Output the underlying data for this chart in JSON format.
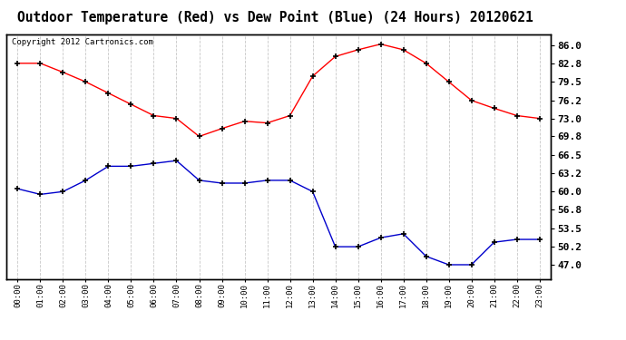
{
  "title": "Outdoor Temperature (Red) vs Dew Point (Blue) (24 Hours) 20120621",
  "copyright": "Copyright 2012 Cartronics.com",
  "x_labels": [
    "00:00",
    "01:00",
    "02:00",
    "03:00",
    "04:00",
    "05:00",
    "06:00",
    "07:00",
    "08:00",
    "09:00",
    "10:00",
    "11:00",
    "12:00",
    "13:00",
    "14:00",
    "15:00",
    "16:00",
    "17:00",
    "18:00",
    "19:00",
    "20:00",
    "21:00",
    "22:00",
    "23:00"
  ],
  "temp_red": [
    82.8,
    82.8,
    81.2,
    79.5,
    77.5,
    75.5,
    73.5,
    73.0,
    69.8,
    71.2,
    72.5,
    72.2,
    73.5,
    80.5,
    84.0,
    85.2,
    86.2,
    85.2,
    82.8,
    79.5,
    76.2,
    74.8,
    73.5,
    73.0
  ],
  "dew_blue": [
    60.5,
    59.5,
    60.0,
    62.0,
    64.5,
    64.5,
    65.0,
    65.5,
    62.0,
    61.5,
    61.5,
    62.0,
    62.0,
    60.0,
    50.2,
    50.2,
    51.8,
    52.5,
    48.5,
    47.0,
    47.0,
    51.0,
    51.5,
    51.5
  ],
  "y_ticks": [
    47.0,
    50.2,
    53.5,
    56.8,
    60.0,
    63.2,
    66.5,
    69.8,
    73.0,
    76.2,
    79.5,
    82.8,
    86.0
  ],
  "ylim": [
    44.5,
    88.0
  ],
  "bg_color": "#ffffff",
  "grid_color": "#c8c8c8",
  "red_color": "#ff0000",
  "blue_color": "#0000cc",
  "title_fontsize": 10.5,
  "copyright_fontsize": 6.5
}
